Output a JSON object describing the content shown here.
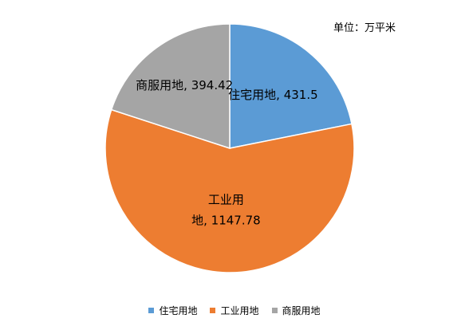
{
  "unit_label": "单位：万平米",
  "chart_data": {
    "type": "pie",
    "title": "",
    "series": [
      {
        "name": "住宅用地",
        "value": 431.5,
        "label_lines": [
          "住宅用地, 431.5"
        ],
        "color": "#5B9BD5"
      },
      {
        "name": "工业用地",
        "value": 1147.78,
        "label_lines": [
          "工业用",
          "地, 1147.78"
        ],
        "color": "#ED7D31"
      },
      {
        "name": "商服用地",
        "value": 394.42,
        "label_lines": [
          "商服用地, 394.42"
        ],
        "color": "#A5A5A5"
      }
    ],
    "start_angle_deg": 0,
    "direction": "clockwise",
    "legend_position": "bottom"
  }
}
